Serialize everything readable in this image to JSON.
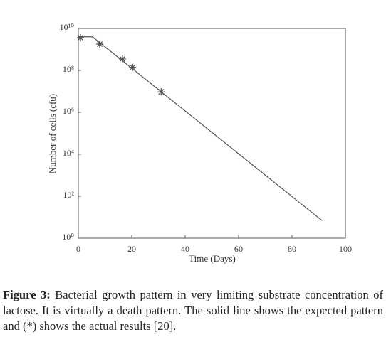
{
  "chart_data": {
    "type": "line",
    "x_label": "Time (Days)",
    "y_label": "Number of cells (cfu)",
    "xlim": [
      0,
      100
    ],
    "xticks": [
      0,
      20,
      40,
      60,
      80,
      100
    ],
    "ylim": [
      1,
      10000000000
    ],
    "y_log": true,
    "yticks": [
      {
        "value": 1,
        "label": "10⁰"
      },
      {
        "value": 100,
        "label": "10²"
      },
      {
        "value": 10000,
        "label": "10⁴"
      },
      {
        "value": 1000000,
        "label": "10⁶"
      },
      {
        "value": 100000000,
        "label": "10⁸"
      },
      {
        "value": 10000000000,
        "label": "10¹⁰"
      }
    ],
    "series": [
      {
        "style": "line",
        "color": "#555555",
        "x": [
          0,
          5.3,
          91.2
        ],
        "values": [
          4000000000,
          4000000000,
          7
        ]
      },
      {
        "style": "markers",
        "color": "#444444",
        "x": [
          0.8,
          8,
          16.5,
          20.3,
          31
        ],
        "values": [
          3600000000,
          1800000000,
          350000000,
          140000000,
          9500000
        ]
      }
    ]
  },
  "caption": {
    "label": "Figure 3:",
    "text": "Bacterial growth pattern in very limiting substrate concentration of lactose. It is virtually a death pattern. The solid line shows the expected pattern and (*) shows the actual results [20]."
  }
}
